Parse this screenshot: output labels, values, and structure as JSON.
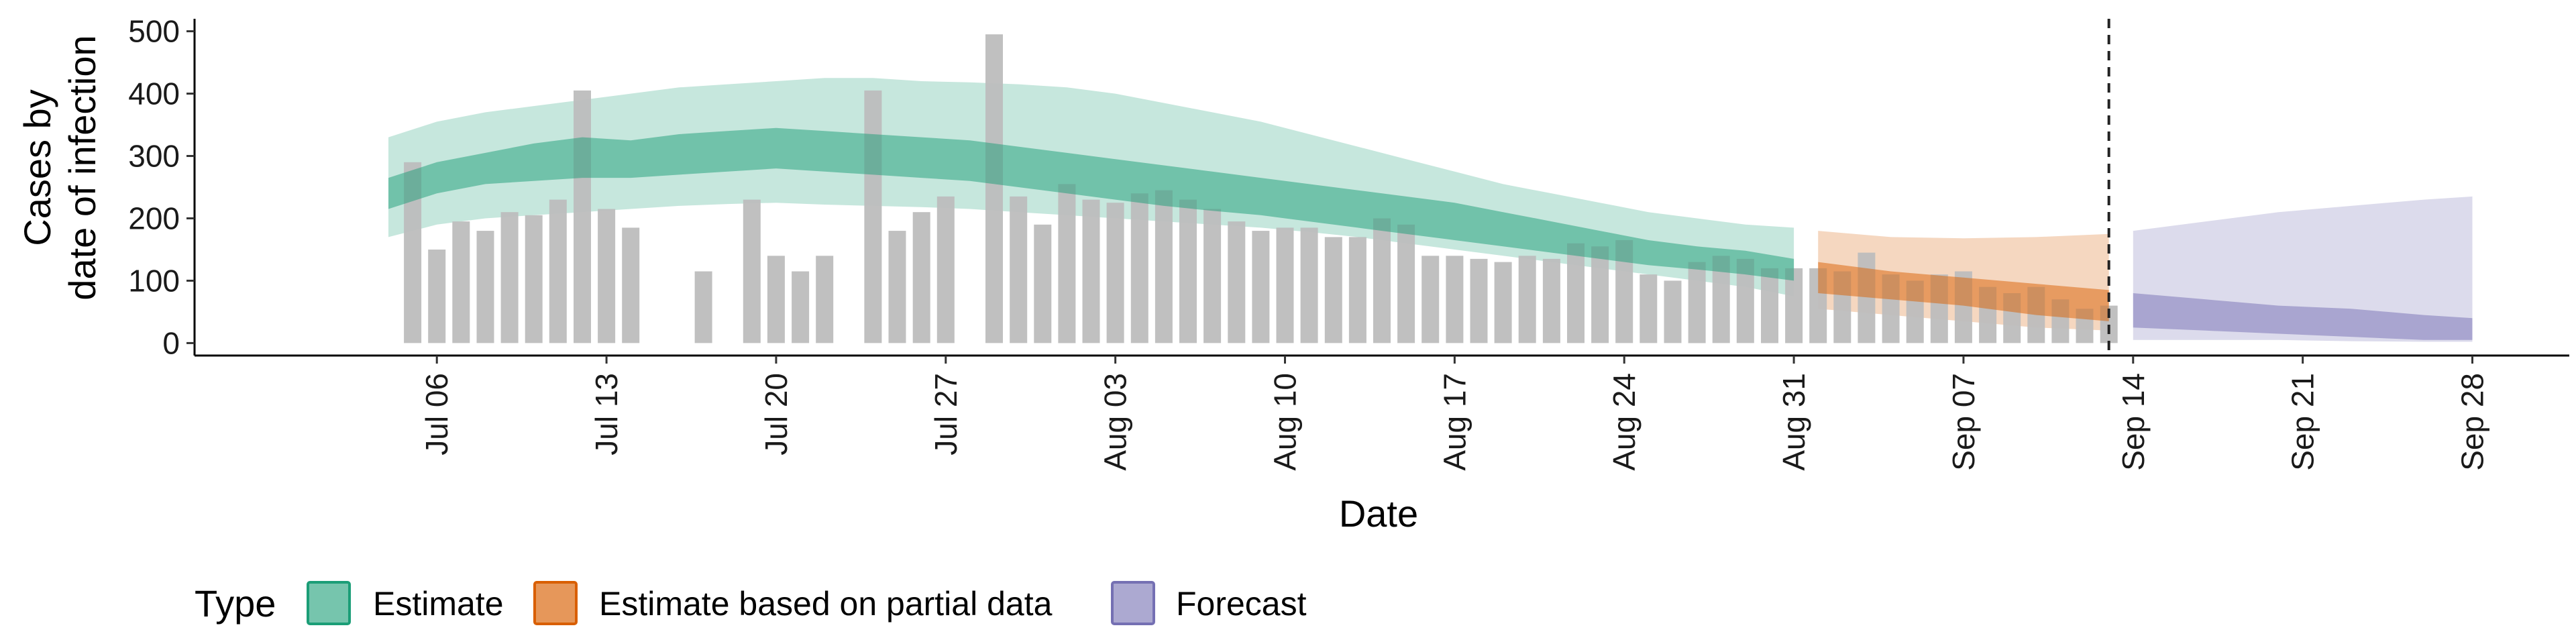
{
  "chart_data": {
    "type": "bar",
    "xlabel": "Date",
    "ylabel": [
      "Cases by",
      "date of infection"
    ],
    "x_ticks": [
      "Jul 06",
      "Jul 13",
      "Jul 20",
      "Jul 27",
      "Aug 03",
      "Aug 10",
      "Aug 17",
      "Aug 24",
      "Aug 31",
      "Sep 07",
      "Sep 14",
      "Sep 21",
      "Sep 28"
    ],
    "x_tick_dates": [
      "2020-07-06",
      "2020-07-13",
      "2020-07-20",
      "2020-07-27",
      "2020-08-03",
      "2020-08-10",
      "2020-08-17",
      "2020-08-24",
      "2020-08-31",
      "2020-09-07",
      "2020-09-14",
      "2020-09-21",
      "2020-09-28"
    ],
    "y_ticks": [
      0,
      100,
      200,
      300,
      400,
      500
    ],
    "ylim": [
      -20,
      520
    ],
    "xlim": [
      "2020-06-26",
      "2020-10-02"
    ],
    "grid": false,
    "vline_date": "2020-09-13",
    "legend": {
      "title": "Type",
      "position": "bottom-left",
      "items": [
        {
          "label": "Estimate",
          "color": "#1b9e77"
        },
        {
          "label": "Estimate based on partial data",
          "color": "#d95f02"
        },
        {
          "label": "Forecast",
          "color": "#7570b3"
        }
      ]
    },
    "bars": {
      "color": "#bdbdbd",
      "x": [
        "2020-07-05",
        "2020-07-06",
        "2020-07-07",
        "2020-07-08",
        "2020-07-09",
        "2020-07-10",
        "2020-07-11",
        "2020-07-12",
        "2020-07-13",
        "2020-07-14",
        "2020-07-15",
        "2020-07-16",
        "2020-07-17",
        "2020-07-18",
        "2020-07-19",
        "2020-07-20",
        "2020-07-21",
        "2020-07-22",
        "2020-07-23",
        "2020-07-24",
        "2020-07-25",
        "2020-07-26",
        "2020-07-27",
        "2020-07-28",
        "2020-07-29",
        "2020-07-30",
        "2020-07-31",
        "2020-08-01",
        "2020-08-02",
        "2020-08-03",
        "2020-08-04",
        "2020-08-05",
        "2020-08-06",
        "2020-08-07",
        "2020-08-08",
        "2020-08-09",
        "2020-08-10",
        "2020-08-11",
        "2020-08-12",
        "2020-08-13",
        "2020-08-14",
        "2020-08-15",
        "2020-08-16",
        "2020-08-17",
        "2020-08-18",
        "2020-08-19",
        "2020-08-20",
        "2020-08-21",
        "2020-08-22",
        "2020-08-23",
        "2020-08-24",
        "2020-08-25",
        "2020-08-26",
        "2020-08-27",
        "2020-08-28",
        "2020-08-29",
        "2020-08-30",
        "2020-08-31",
        "2020-09-01",
        "2020-09-02",
        "2020-09-03",
        "2020-09-04",
        "2020-09-05",
        "2020-09-06",
        "2020-09-07",
        "2020-09-08",
        "2020-09-09",
        "2020-09-10",
        "2020-09-11",
        "2020-09-12",
        "2020-09-13"
      ],
      "values": [
        290,
        150,
        195,
        180,
        210,
        205,
        230,
        405,
        215,
        185,
        0,
        0,
        115,
        0,
        230,
        140,
        115,
        140,
        0,
        405,
        180,
        210,
        235,
        0,
        495,
        235,
        190,
        255,
        230,
        225,
        240,
        245,
        230,
        215,
        195,
        180,
        185,
        185,
        170,
        170,
        200,
        190,
        140,
        140,
        135,
        130,
        140,
        135,
        160,
        155,
        165,
        110,
        100,
        130,
        140,
        135,
        120,
        120,
        120,
        115,
        145,
        110,
        100,
        110,
        115,
        90,
        80,
        90,
        70,
        55,
        60
      ]
    },
    "series": [
      {
        "name": "Estimate",
        "color": "#1b9e77",
        "x": [
          "2020-07-04",
          "2020-07-06",
          "2020-07-08",
          "2020-07-10",
          "2020-07-12",
          "2020-07-14",
          "2020-07-16",
          "2020-07-18",
          "2020-07-20",
          "2020-07-22",
          "2020-07-24",
          "2020-07-26",
          "2020-07-28",
          "2020-07-30",
          "2020-08-01",
          "2020-08-03",
          "2020-08-05",
          "2020-08-07",
          "2020-08-09",
          "2020-08-11",
          "2020-08-13",
          "2020-08-15",
          "2020-08-17",
          "2020-08-19",
          "2020-08-21",
          "2020-08-23",
          "2020-08-25",
          "2020-08-27",
          "2020-08-29",
          "2020-08-31"
        ],
        "outer_lower": [
          170,
          190,
          200,
          205,
          210,
          215,
          220,
          223,
          225,
          222,
          220,
          218,
          215,
          210,
          205,
          200,
          195,
          190,
          185,
          178,
          170,
          160,
          150,
          140,
          130,
          120,
          110,
          100,
          90,
          75
        ],
        "outer_upper": [
          330,
          355,
          370,
          380,
          390,
          400,
          410,
          415,
          420,
          425,
          425,
          420,
          418,
          415,
          410,
          400,
          385,
          370,
          355,
          335,
          315,
          295,
          275,
          255,
          240,
          225,
          210,
          200,
          190,
          185
        ],
        "inner_lower": [
          215,
          240,
          255,
          260,
          265,
          265,
          270,
          275,
          280,
          275,
          270,
          265,
          260,
          250,
          240,
          230,
          220,
          212,
          205,
          195,
          185,
          175,
          165,
          155,
          145,
          135,
          125,
          118,
          110,
          100
        ],
        "inner_upper": [
          265,
          290,
          305,
          320,
          330,
          325,
          335,
          340,
          345,
          340,
          335,
          330,
          325,
          315,
          305,
          295,
          285,
          275,
          265,
          255,
          245,
          235,
          225,
          210,
          195,
          180,
          165,
          155,
          148,
          135
        ]
      },
      {
        "name": "Estimate based on partial data",
        "color": "#d95f02",
        "x": [
          "2020-09-01",
          "2020-09-04",
          "2020-09-07",
          "2020-09-10",
          "2020-09-13"
        ],
        "outer_lower": [
          55,
          45,
          35,
          25,
          20
        ],
        "outer_upper": [
          180,
          170,
          168,
          170,
          175
        ],
        "inner_lower": [
          80,
          70,
          60,
          45,
          35
        ],
        "inner_upper": [
          130,
          115,
          105,
          95,
          85
        ]
      },
      {
        "name": "Forecast",
        "color": "#7570b3",
        "x": [
          "2020-09-14",
          "2020-09-17",
          "2020-09-20",
          "2020-09-23",
          "2020-09-26",
          "2020-09-28"
        ],
        "outer_lower": [
          5,
          5,
          5,
          3,
          2,
          2
        ],
        "outer_upper": [
          180,
          195,
          210,
          220,
          230,
          235
        ],
        "inner_lower": [
          25,
          20,
          15,
          10,
          5,
          5
        ],
        "inner_upper": [
          80,
          70,
          60,
          55,
          45,
          40
        ]
      }
    ]
  }
}
